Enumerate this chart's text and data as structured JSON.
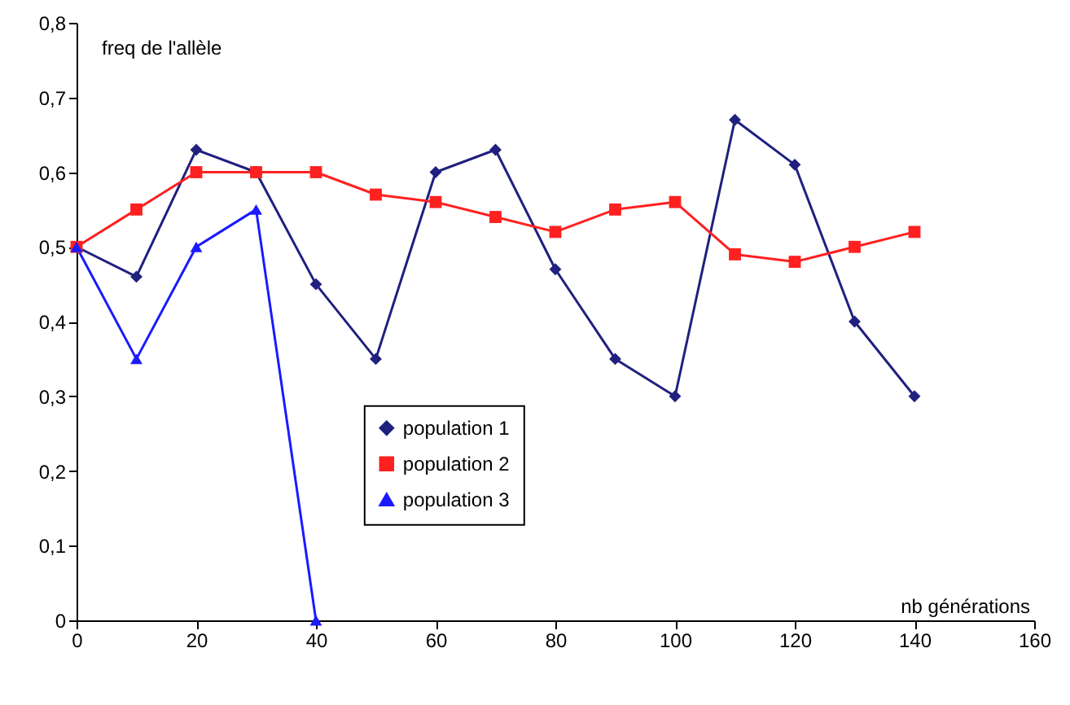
{
  "chart_data": {
    "type": "line",
    "xlabel": "nb générations",
    "ylabel": "freq de l'allèle",
    "x": [
      0,
      10,
      20,
      30,
      40,
      50,
      60,
      70,
      80,
      90,
      100,
      110,
      120,
      130,
      140
    ],
    "series": [
      {
        "name": "population 1",
        "color": "#20207f",
        "marker": "diamond",
        "values": [
          0.5,
          0.46,
          0.63,
          0.6,
          0.45,
          0.35,
          0.6,
          0.63,
          0.47,
          0.35,
          0.3,
          0.67,
          0.61,
          0.4,
          0.3
        ]
      },
      {
        "name": "population 2",
        "color": "#ff2020",
        "marker": "square",
        "values": [
          0.5,
          0.55,
          0.6,
          0.6,
          0.6,
          0.57,
          0.56,
          0.54,
          0.52,
          0.55,
          0.56,
          0.49,
          0.48,
          0.5,
          0.52
        ]
      },
      {
        "name": "population 3",
        "color": "#1a1aff",
        "marker": "triangle",
        "x": [
          0,
          10,
          20,
          30,
          40
        ],
        "values": [
          0.5,
          0.35,
          0.5,
          0.55,
          0
        ]
      }
    ],
    "xlim": [
      0,
      160
    ],
    "xticks": [
      0,
      20,
      40,
      60,
      80,
      100,
      120,
      140,
      160
    ],
    "ylim": [
      0,
      0.8
    ],
    "yticks": [
      {
        "value": 0,
        "label": "0"
      },
      {
        "value": 0.1,
        "label": "0,1"
      },
      {
        "value": 0.2,
        "label": "0,2"
      },
      {
        "value": 0.3,
        "label": "0,3"
      },
      {
        "value": 0.4,
        "label": "0,4"
      },
      {
        "value": 0.5,
        "label": "0,5"
      },
      {
        "value": 0.6,
        "label": "0,6"
      },
      {
        "value": 0.7,
        "label": "0,7"
      },
      {
        "value": 0.8,
        "label": "0,8"
      }
    ],
    "grid": false,
    "legend": "bottom"
  }
}
